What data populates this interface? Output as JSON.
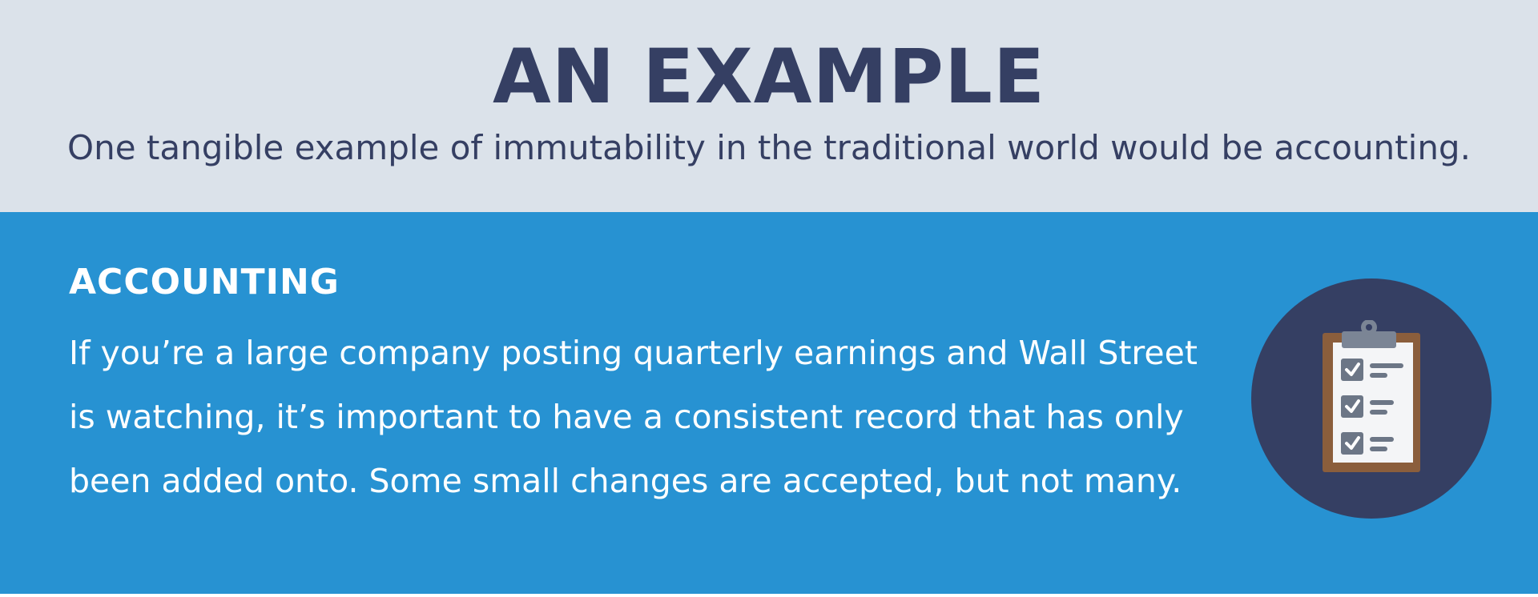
{
  "header": {
    "title": "AN EXAMPLE",
    "subtitle": "One tangible example of immutability in the traditional world would be accounting."
  },
  "section": {
    "heading": "ACCOUNTING",
    "body": "If you’re a large company posting quarterly earnings and Wall Street is watching, it’s important to have a consistent record that has only been added onto. Some small changes are accepted, but not many.",
    "icon": "clipboard-checklist-icon"
  },
  "colors": {
    "top_band": "#dbe2ea",
    "navy": "#353f63",
    "blue_band": "#2792d2",
    "clipboard_brown": "#8b5e3c",
    "paper": "#f4f5f7",
    "checkbox_gray": "#6c7686"
  }
}
